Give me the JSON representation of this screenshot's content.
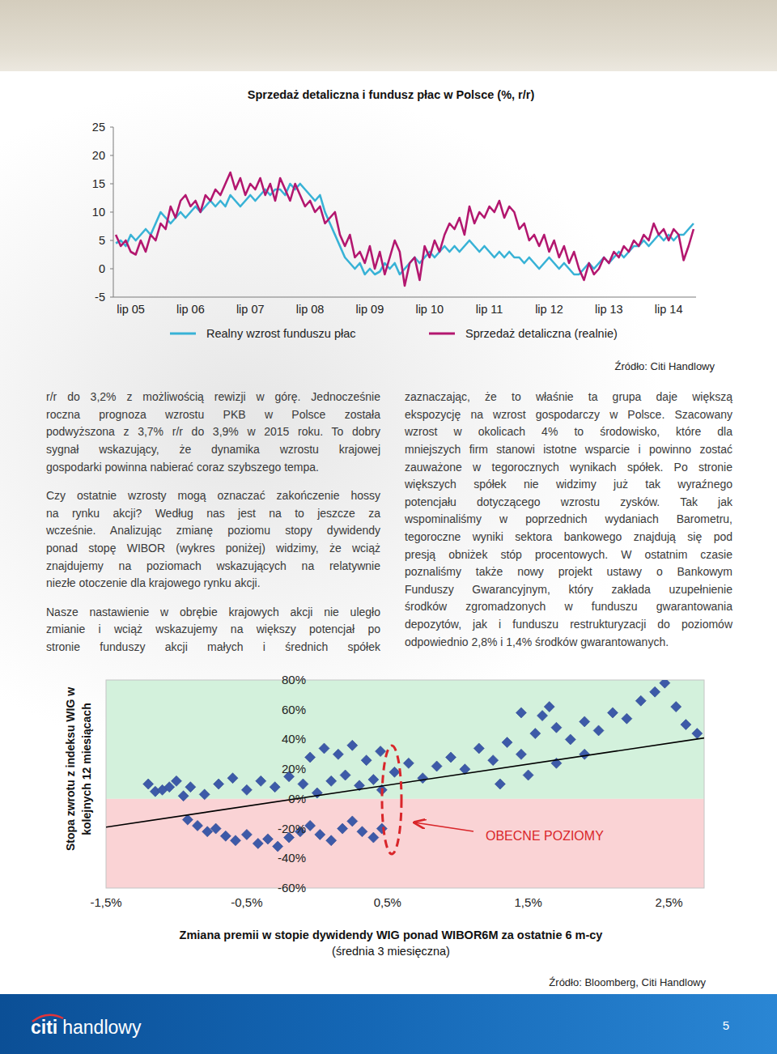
{
  "chart_data": [
    {
      "type": "line",
      "title": "Sprzedaż detaliczna i fundusz płac w Polsce (%, r/r)",
      "categories": [
        null,
        null,
        null,
        "lip 05",
        null,
        null,
        null,
        null,
        null,
        null,
        null,
        null,
        null,
        null,
        null,
        "lip 06",
        null,
        null,
        null,
        null,
        null,
        null,
        null,
        null,
        null,
        null,
        null,
        "lip 07",
        null,
        null,
        null,
        null,
        null,
        null,
        null,
        null,
        null,
        null,
        null,
        "lip 08",
        null,
        null,
        null,
        null,
        null,
        null,
        null,
        null,
        null,
        null,
        null,
        "lip 09",
        null,
        null,
        null,
        null,
        null,
        null,
        null,
        null,
        null,
        null,
        null,
        "lip 10",
        null,
        null,
        null,
        null,
        null,
        null,
        null,
        null,
        null,
        null,
        null,
        "lip 11",
        null,
        null,
        null,
        null,
        null,
        null,
        null,
        null,
        null,
        null,
        null,
        "lip 12",
        null,
        null,
        null,
        null,
        null,
        null,
        null,
        null,
        null,
        null,
        null,
        "lip 13",
        null,
        null,
        null,
        null,
        null,
        null,
        null,
        null,
        null,
        null,
        null,
        "lip 14",
        null,
        null,
        null,
        null,
        null
      ],
      "series": [
        {
          "name": "Realny wzrost funduszu płac",
          "color": "#38b2d6",
          "values": [
            4.5,
            5,
            4,
            6,
            5,
            6,
            7,
            6,
            8,
            10,
            9,
            8,
            9,
            10,
            9,
            10,
            11,
            10,
            11,
            12,
            11,
            12,
            11,
            13,
            12,
            11,
            12,
            13,
            12,
            13,
            14,
            13,
            14,
            14,
            13,
            15,
            14,
            15,
            14,
            13,
            12,
            13,
            10,
            8,
            6,
            4,
            2,
            1,
            0,
            1,
            -1,
            0,
            -1,
            -0.5,
            1,
            0,
            1,
            -1,
            0,
            1,
            2,
            1,
            2,
            3,
            2,
            3,
            4,
            3,
            4,
            3,
            4,
            5,
            4,
            3,
            4,
            3,
            2,
            3,
            2,
            3,
            2,
            2,
            1,
            2,
            1,
            0,
            1,
            2,
            1,
            0,
            1,
            0,
            -1,
            -1,
            0,
            1,
            0,
            1,
            2,
            1,
            2,
            3,
            2,
            3,
            4,
            4,
            5,
            4,
            5,
            6,
            5,
            6,
            5,
            6,
            6,
            7,
            8
          ]
        },
        {
          "name": "Sprzedaż detaliczna (realnie)",
          "color": "#b3176f",
          "values": [
            6,
            4,
            5,
            3,
            2.5,
            5,
            3,
            6,
            5,
            8,
            7,
            11,
            9,
            12,
            13,
            11,
            12,
            10,
            13,
            12,
            14,
            13,
            15,
            17,
            14,
            16,
            13,
            15,
            14,
            16,
            13,
            15,
            12,
            16,
            14,
            12,
            15,
            13,
            11,
            12,
            10,
            11,
            8,
            9,
            10,
            6,
            4,
            6,
            2,
            3,
            1,
            4,
            0,
            3,
            -1,
            2,
            5,
            3,
            -3,
            1,
            2,
            -2,
            4,
            2,
            5,
            3,
            6,
            8,
            7,
            9,
            6,
            11,
            8,
            10,
            9,
            11,
            10,
            12,
            9,
            11,
            10,
            7,
            8,
            5,
            6,
            4,
            6,
            3,
            5,
            2,
            4,
            1,
            3,
            0,
            -2,
            1,
            -1,
            0,
            2,
            1,
            3,
            2,
            4,
            3,
            5,
            4,
            6,
            5,
            8,
            6,
            7,
            5,
            7,
            6,
            1.5,
            4,
            7
          ]
        }
      ],
      "ylim": [
        -5,
        25
      ],
      "yticks": [
        -5,
        0,
        5,
        10,
        15,
        20,
        25
      ],
      "legend": "bottom",
      "source": "Źródło: Citi Handlowy"
    },
    {
      "type": "scatter",
      "x_label": "Zmiana premii w stopie dywidendy WIG ponad WIBOR6M za ostatnie 6 m-cy",
      "x_sublabel": "(średnia 3 miesięczna)",
      "y_label": [
        "Stopa zwrotu z indeksu WIG w",
        "kolejnych 12 miesiącach"
      ],
      "xlim": [
        -1.5,
        2.75
      ],
      "xticks": [
        {
          "value": -1.5,
          "label": "-1,5%"
        },
        {
          "value": -0.5,
          "label": "-0,5%"
        },
        {
          "value": 0.5,
          "label": "0,5%"
        },
        {
          "value": 1.5,
          "label": "1,5%"
        },
        {
          "value": 2.5,
          "label": "2,5%"
        }
      ],
      "ylim": [
        -60,
        80
      ],
      "yticks": [
        {
          "value": 80,
          "label": "80%"
        },
        {
          "value": 60,
          "label": "60%"
        },
        {
          "value": 40,
          "label": "40%"
        },
        {
          "value": 20,
          "label": "20%"
        },
        {
          "value": 0,
          "label": "0%"
        },
        {
          "value": -20,
          "label": "-20%"
        },
        {
          "value": -40,
          "label": "-40%"
        },
        {
          "value": -60,
          "label": "-60%"
        }
      ],
      "bands": [
        {
          "from": 0,
          "to": 80,
          "color": "#d3f1dc"
        },
        {
          "from": -60,
          "to": 0,
          "color": "#fad3d5"
        }
      ],
      "series": [
        {
          "color": "#3d5aa8",
          "marker": "diamond",
          "x": [
            -0.92,
            -0.85,
            -0.78,
            -0.72,
            -0.65,
            -0.58,
            -0.5,
            -0.42,
            -0.35,
            -0.28,
            -0.2,
            -0.12,
            -0.05,
            0.02,
            0.1,
            0.18,
            0.25,
            0.32,
            0.4,
            0.46,
            -1.2,
            -1.15,
            -1.1,
            -1.05,
            -1.0,
            -0.95,
            -0.9,
            -0.8,
            -0.7,
            -0.6,
            -0.5,
            -0.4,
            -0.3,
            -0.2,
            -0.1,
            0.0,
            0.1,
            0.2,
            0.3,
            0.4,
            0.46,
            -0.05,
            0.05,
            0.15,
            0.25,
            0.35,
            0.45,
            0.55,
            0.65,
            0.75,
            0.85,
            0.95,
            1.05,
            1.15,
            1.25,
            1.35,
            1.45,
            1.55,
            1.6,
            1.7,
            1.8,
            1.9,
            2.0,
            2.1,
            2.2,
            2.3,
            2.4,
            2.47,
            2.55,
            2.62,
            2.7,
            1.3,
            1.5,
            1.7,
            1.9,
            1.45,
            1.65
          ],
          "values": [
            -14,
            -18,
            -22,
            -20,
            -25,
            -28,
            -24,
            -30,
            -27,
            -32,
            -26,
            -22,
            -18,
            -24,
            -28,
            -20,
            -15,
            -22,
            -26,
            -20,
            10,
            5,
            6,
            8,
            12,
            2,
            8,
            3,
            10,
            14,
            6,
            12,
            8,
            15,
            10,
            4,
            12,
            16,
            9,
            13,
            6,
            28,
            34,
            30,
            36,
            26,
            32,
            18,
            24,
            14,
            22,
            28,
            20,
            34,
            26,
            38,
            30,
            44,
            56,
            48,
            40,
            52,
            46,
            58,
            54,
            66,
            72,
            78,
            62,
            50,
            44,
            10,
            16,
            24,
            30,
            58,
            62
          ]
        },
        {
          "type": "line",
          "color": "#000000",
          "x": [
            -1.5,
            2.75
          ],
          "values": [
            -19,
            41
          ]
        }
      ],
      "annotations": [
        {
          "text": "OBECNE POZIOMY"
        }
      ],
      "source": "Źródło: Bloomberg, Citi Handlowy"
    }
  ],
  "text_columns": [
    [
      [
        "r/r do 3,2% z możliwością rewizji w górę. Jednocześnie",
        "roczna prognoza wzrostu PKB w Polsce została",
        "podwyższona z 3,7% r/r do 3,9% w 2015 roku. To dobry",
        "sygnał wskazujący, że dynamika wzrostu krajowej",
        "gospodarki powinna nabierać coraz szybszego tempa."
      ],
      [
        "Czy ostatnie wzrosty mogą oznaczać zakończenie hossy",
        "na rynku akcji? Według nas jest na to jeszcze za",
        "wcześnie. Analizując zmianę poziomu stopy dywidendy",
        "ponad stopę WIBOR (wykres poniżej) widzimy, że wciąż",
        "znajdujemy na poziomach wskazujących na relatywnie",
        "niezłe otoczenie dla krajowego rynku akcji."
      ],
      [
        "Nasze nastawienie w obrębie krajowych akcji nie uległo",
        "zmianie i wciąż wskazujemy na większy potencjał po",
        "stronie funduszy akcji małych i średnich spółek"
      ]
    ],
    [
      [
        "zaznaczając, że to właśnie ta grupa daje większą",
        "ekspozycję na wzrost gospodarczy w Polsce. Szacowany",
        "wzrost w okolicach 4% to środowisko, które dla",
        "mniejszych firm stanowi istotne wsparcie i powinno zostać",
        "zauważone w tegorocznych wynikach spółek. Po stronie",
        "większych spółek nie widzimy już tak wyraźnego",
        "potencjału dotyczącego wzrostu zysków. Tak jak",
        "wspominaliśmy w poprzednich wydaniach Barometru,",
        "tegoroczne wyniki sektora bankowego znajdują się pod",
        "presją obniżek stóp procentowych. W ostatnim czasie",
        "poznaliśmy także nowy projekt ustawy o Bankowym",
        "Funduszy Gwarancyjnym, który zakłada uzupełnienie",
        "środków zgromadzonych w funduszu gwarantowania",
        "depozytów, jak i funduszu restrukturyzacji do poziomów",
        "odpowiednio 2,8% i 1,4% środków gwarantowanych."
      ]
    ]
  ],
  "footer": {
    "brand": "citi handlowy",
    "page": 5
  }
}
